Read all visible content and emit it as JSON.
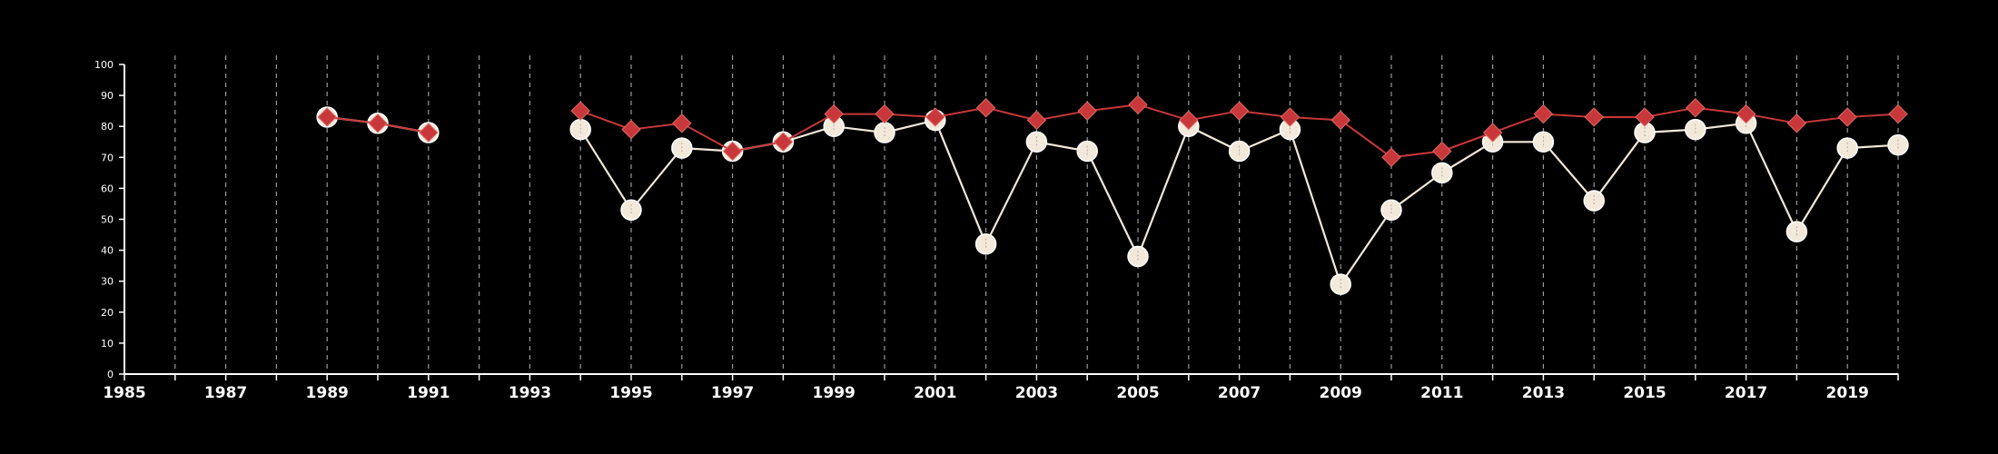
{
  "chart_data": {
    "type": "line",
    "title": "",
    "xlabel": "",
    "ylabel": "",
    "xlim": [
      1985,
      2020
    ],
    "ylim": [
      0,
      100
    ],
    "x_ticks": [
      1985,
      1987,
      1989,
      1991,
      1993,
      1995,
      1997,
      1999,
      2001,
      2003,
      2005,
      2007,
      2009,
      2011,
      2013,
      2015,
      2017,
      2019
    ],
    "y_ticks": [
      0,
      10,
      20,
      30,
      40,
      50,
      60,
      70,
      80,
      90,
      100
    ],
    "grid": "vertical dashed lines at every year",
    "legend": "none",
    "series": [
      {
        "marker": "diamond",
        "color": "#c8383a",
        "points": [
          [
            1989,
            83
          ],
          [
            1990,
            81
          ],
          [
            1991,
            78
          ],
          [
            1994,
            85
          ],
          [
            1995,
            79
          ],
          [
            1996,
            81
          ],
          [
            1997,
            72
          ],
          [
            1998,
            75
          ],
          [
            1999,
            84
          ],
          [
            2000,
            84
          ],
          [
            2001,
            83
          ],
          [
            2002,
            86
          ],
          [
            2003,
            82
          ],
          [
            2004,
            85
          ],
          [
            2005,
            87
          ],
          [
            2006,
            82
          ],
          [
            2007,
            85
          ],
          [
            2008,
            83
          ],
          [
            2009,
            82
          ],
          [
            2010,
            70
          ],
          [
            2011,
            72
          ],
          [
            2012,
            78
          ],
          [
            2013,
            84
          ],
          [
            2014,
            83
          ],
          [
            2015,
            83
          ],
          [
            2016,
            86
          ],
          [
            2017,
            84
          ],
          [
            2018,
            81
          ],
          [
            2019,
            83
          ],
          [
            2020,
            84
          ]
        ]
      },
      {
        "marker": "circle",
        "color": "#f3e9da",
        "points": [
          [
            1989,
            83
          ],
          [
            1990,
            81
          ],
          [
            1991,
            78
          ],
          [
            1994,
            79
          ],
          [
            1995,
            53
          ],
          [
            1996,
            73
          ],
          [
            1997,
            72
          ],
          [
            1998,
            75
          ],
          [
            1999,
            80
          ],
          [
            2000,
            78
          ],
          [
            2001,
            82
          ],
          [
            2002,
            42
          ],
          [
            2003,
            75
          ],
          [
            2004,
            72
          ],
          [
            2005,
            38
          ],
          [
            2006,
            80
          ],
          [
            2007,
            72
          ],
          [
            2008,
            79
          ],
          [
            2009,
            29
          ],
          [
            2010,
            53
          ],
          [
            2011,
            65
          ],
          [
            2012,
            75
          ],
          [
            2013,
            75
          ],
          [
            2014,
            56
          ],
          [
            2015,
            78
          ],
          [
            2016,
            79
          ],
          [
            2017,
            81
          ],
          [
            2018,
            46
          ],
          [
            2019,
            73
          ],
          [
            2020,
            74
          ]
        ]
      }
    ]
  }
}
